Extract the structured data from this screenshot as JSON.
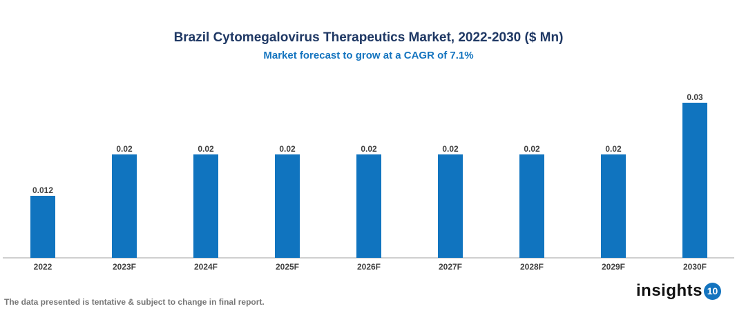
{
  "chart_data": {
    "type": "bar",
    "title": "Brazil Cytomegalovirus Therapeutics Market, 2022-2030 ($ Mn)",
    "subtitle": "Market forecast to grow at a CAGR of 7.1%",
    "categories": [
      "2022",
      "2023F",
      "2024F",
      "2025F",
      "2026F",
      "2027F",
      "2028F",
      "2029F",
      "2030F"
    ],
    "values": [
      0.012,
      0.02,
      0.02,
      0.02,
      0.02,
      0.02,
      0.02,
      0.02,
      0.03
    ],
    "data_labels": [
      "0.012",
      "0.02",
      "0.02",
      "0.02",
      "0.02",
      "0.02",
      "0.02",
      "0.02",
      "0.03"
    ],
    "ylim": [
      0,
      0.03
    ],
    "grid": false,
    "bar_color": "#1074bf"
  },
  "footer": "The data presented is tentative & subject to change in final report.",
  "logo": {
    "text": "insights",
    "badge": "10"
  }
}
